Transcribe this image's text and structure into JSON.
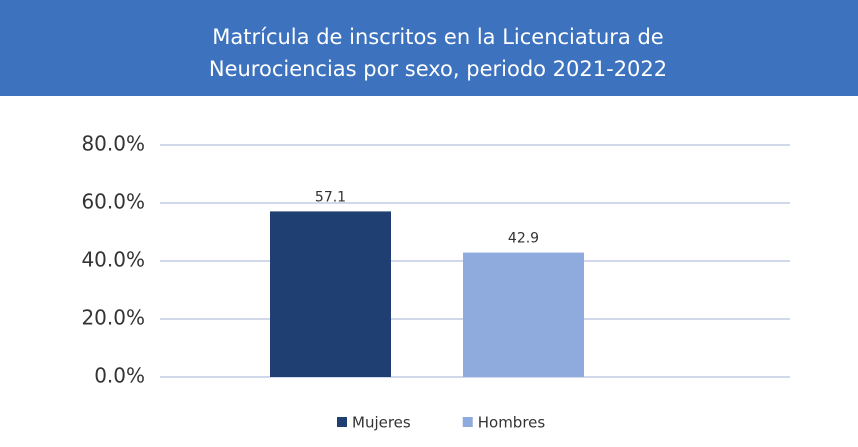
{
  "chart_data": {
    "type": "bar",
    "title": [
      "Matrícula de inscritos en la Licenciatura de",
      "Neurociencias por sexo, periodo 2021-2022"
    ],
    "categories": [
      null
    ],
    "series": [
      {
        "name": "Mujeres",
        "color": "#1f3f73",
        "values": [
          57.1
        ]
      },
      {
        "name": "Hombres",
        "color": "#8faadc",
        "values": [
          42.9
        ]
      }
    ],
    "ylim": [
      0,
      80
    ],
    "yticks": [
      {
        "value": 0,
        "label": "0.0%"
      },
      {
        "value": 20,
        "label": "20.0%"
      },
      {
        "value": 40,
        "label": "40.0%"
      },
      {
        "value": 60,
        "label": "60.0%"
      },
      {
        "value": 80,
        "label": "80.0%"
      }
    ],
    "grid": true,
    "legend": "bottom"
  }
}
